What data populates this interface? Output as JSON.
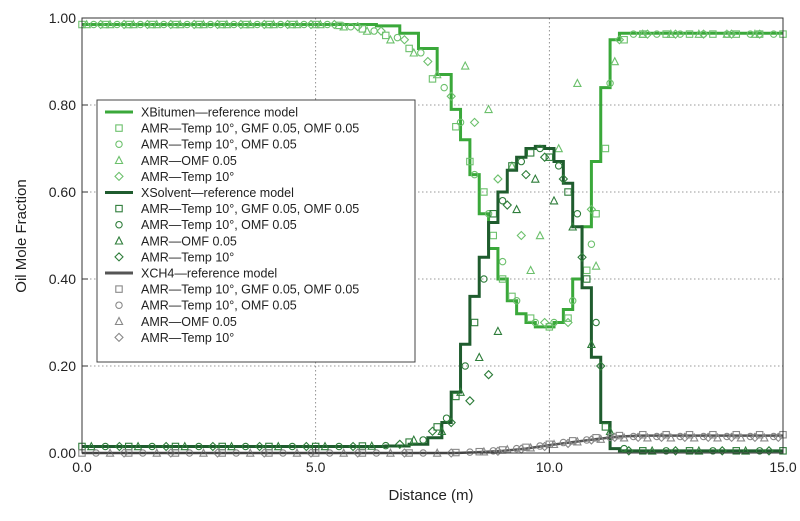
{
  "chart_data": {
    "type": "line",
    "xlabel": "Distance (m)",
    "ylabel": "Oil Mole Fraction",
    "xlim": [
      0,
      15
    ],
    "ylim": [
      0,
      1
    ],
    "x_ticks": [
      "0.0",
      "5.0",
      "10.0",
      "15.0"
    ],
    "y_ticks": [
      "0.00",
      "0.20",
      "0.40",
      "0.60",
      "0.80",
      "1.00"
    ],
    "grid": "dotted at major ticks",
    "legend_position": "center-left",
    "colors": {
      "bitumen": "#3aa83a",
      "bitumen_markers": "#6cc06c",
      "solvent": "#1f5c2e",
      "solvent_markers": "#2e7d3a",
      "ch4": "#555555",
      "ch4_markers": "#888888"
    },
    "series": [
      {
        "name": "XBitumen—reference model",
        "style": "step-line",
        "x": [
          0.0,
          2.0,
          4.0,
          5.5,
          6.3,
          6.8,
          7.2,
          7.6,
          7.9,
          8.1,
          8.3,
          8.5,
          8.7,
          8.9,
          9.1,
          9.3,
          9.5,
          9.7,
          9.9,
          10.1,
          10.3,
          10.5,
          10.7,
          10.9,
          11.1,
          11.3,
          11.5,
          12.0,
          13.0,
          14.0,
          15.0
        ],
        "y": [
          0.985,
          0.985,
          0.985,
          0.985,
          0.982,
          0.965,
          0.93,
          0.87,
          0.79,
          0.72,
          0.64,
          0.55,
          0.47,
          0.4,
          0.35,
          0.32,
          0.3,
          0.29,
          0.29,
          0.3,
          0.33,
          0.4,
          0.52,
          0.67,
          0.84,
          0.95,
          0.965,
          0.965,
          0.965,
          0.965,
          0.965
        ]
      },
      {
        "name": "AMR—Temp 10°, GMF 0.05, OMF 0.05",
        "marker": "square",
        "family": "bitumen",
        "x": [
          0.0,
          0.5,
          1.0,
          1.5,
          2.0,
          2.5,
          3.0,
          3.5,
          4.0,
          4.5,
          5.0,
          5.5,
          6.0,
          6.5,
          7.0,
          7.5,
          8.0,
          8.3,
          8.6,
          8.8,
          9.0,
          9.2,
          9.6,
          10.0,
          10.4,
          10.8,
          11.0,
          11.2,
          11.6,
          12.0,
          12.5,
          13.0,
          13.5,
          14.0,
          14.5,
          15.0
        ],
        "y": [
          0.985,
          0.985,
          0.985,
          0.985,
          0.985,
          0.985,
          0.985,
          0.985,
          0.985,
          0.985,
          0.985,
          0.983,
          0.975,
          0.96,
          0.93,
          0.86,
          0.75,
          0.67,
          0.6,
          0.5,
          0.4,
          0.36,
          0.31,
          0.29,
          0.31,
          0.42,
          0.55,
          0.7,
          0.95,
          0.963,
          0.963,
          0.963,
          0.963,
          0.963,
          0.963,
          0.963
        ]
      },
      {
        "name": "AMR—Temp 10°, OMF 0.05",
        "marker": "circle",
        "family": "bitumen",
        "x": [
          0.25,
          0.75,
          1.25,
          1.75,
          2.25,
          2.75,
          3.25,
          3.75,
          4.25,
          4.75,
          5.25,
          5.75,
          6.25,
          6.75,
          7.25,
          7.75,
          8.1,
          8.4,
          8.7,
          9.0,
          9.3,
          9.7,
          10.1,
          10.5,
          10.9,
          11.3,
          11.8,
          12.3,
          12.8,
          13.3,
          13.8,
          14.3,
          14.8
        ],
        "y": [
          0.985,
          0.985,
          0.985,
          0.985,
          0.985,
          0.985,
          0.985,
          0.985,
          0.985,
          0.985,
          0.985,
          0.98,
          0.97,
          0.955,
          0.92,
          0.84,
          0.76,
          0.64,
          0.55,
          0.44,
          0.35,
          0.3,
          0.3,
          0.35,
          0.48,
          0.85,
          0.963,
          0.963,
          0.963,
          0.963,
          0.963,
          0.963,
          0.963
        ]
      },
      {
        "name": "AMR—OMF 0.05",
        "marker": "triangle",
        "family": "bitumen",
        "x": [
          0.1,
          0.6,
          1.1,
          1.6,
          2.1,
          2.6,
          3.1,
          3.6,
          4.1,
          4.6,
          5.1,
          5.6,
          6.1,
          6.6,
          7.1,
          7.6,
          8.2,
          8.7,
          9.2,
          9.6,
          9.8,
          10.2,
          10.6,
          11.0,
          11.4,
          12.0,
          12.6,
          13.2,
          13.8,
          14.4
        ],
        "y": [
          0.985,
          0.985,
          0.985,
          0.985,
          0.985,
          0.985,
          0.985,
          0.985,
          0.985,
          0.985,
          0.985,
          0.98,
          0.97,
          0.95,
          0.92,
          0.87,
          0.89,
          0.79,
          0.66,
          0.42,
          0.5,
          0.7,
          0.85,
          0.43,
          0.9,
          0.963,
          0.963,
          0.963,
          0.963,
          0.963
        ]
      },
      {
        "name": "AMR—Temp 10°",
        "marker": "diamond",
        "family": "bitumen",
        "x": [
          0.4,
          0.9,
          1.4,
          1.9,
          2.4,
          2.9,
          3.4,
          3.9,
          4.4,
          4.9,
          5.4,
          5.9,
          6.4,
          6.9,
          7.4,
          7.9,
          8.4,
          8.9,
          9.4,
          9.9,
          10.4,
          10.9,
          11.5,
          12.1,
          12.7,
          13.3,
          13.9,
          14.5
        ],
        "y": [
          0.985,
          0.985,
          0.985,
          0.985,
          0.985,
          0.985,
          0.985,
          0.985,
          0.985,
          0.985,
          0.985,
          0.98,
          0.97,
          0.95,
          0.9,
          0.82,
          0.76,
          0.63,
          0.5,
          0.3,
          0.3,
          0.56,
          0.95,
          0.963,
          0.963,
          0.963,
          0.963,
          0.963
        ]
      },
      {
        "name": "XSolvent—reference model",
        "style": "step-line",
        "x": [
          0.0,
          2.0,
          4.0,
          5.5,
          6.5,
          7.0,
          7.4,
          7.7,
          7.9,
          8.1,
          8.3,
          8.5,
          8.7,
          8.9,
          9.1,
          9.3,
          9.5,
          9.7,
          9.9,
          10.1,
          10.3,
          10.5,
          10.7,
          10.9,
          11.1,
          11.3,
          11.5,
          12.0,
          13.0,
          14.0,
          15.0
        ],
        "y": [
          0.015,
          0.015,
          0.015,
          0.015,
          0.016,
          0.02,
          0.035,
          0.07,
          0.14,
          0.25,
          0.36,
          0.45,
          0.53,
          0.6,
          0.65,
          0.68,
          0.7,
          0.705,
          0.7,
          0.67,
          0.62,
          0.52,
          0.38,
          0.22,
          0.07,
          0.01,
          0.005,
          0.005,
          0.005,
          0.005,
          0.005
        ]
      },
      {
        "name": "AMR—Temp 10°, GMF 0.05, OMF 0.05",
        "marker": "square",
        "family": "solvent",
        "x": [
          0.0,
          1.0,
          2.0,
          3.0,
          4.0,
          5.0,
          6.0,
          7.0,
          7.6,
          8.0,
          8.4,
          8.8,
          9.2,
          9.6,
          10.0,
          10.4,
          10.8,
          11.2,
          12.0,
          13.0,
          14.0,
          15.0
        ],
        "y": [
          0.015,
          0.015,
          0.015,
          0.015,
          0.015,
          0.015,
          0.016,
          0.025,
          0.06,
          0.13,
          0.3,
          0.55,
          0.66,
          0.69,
          0.68,
          0.6,
          0.4,
          0.06,
          0.005,
          0.005,
          0.005,
          0.005
        ]
      },
      {
        "name": "AMR—Temp 10°, OMF 0.05",
        "marker": "circle",
        "family": "solvent",
        "x": [
          0.5,
          1.5,
          2.5,
          3.5,
          4.5,
          5.5,
          6.5,
          7.3,
          7.8,
          8.2,
          8.6,
          9.0,
          9.4,
          9.8,
          10.2,
          10.6,
          11.0,
          11.6,
          12.5,
          13.5,
          14.5
        ],
        "y": [
          0.015,
          0.015,
          0.015,
          0.015,
          0.015,
          0.015,
          0.017,
          0.03,
          0.08,
          0.2,
          0.4,
          0.58,
          0.67,
          0.7,
          0.66,
          0.55,
          0.3,
          0.01,
          0.005,
          0.005,
          0.005
        ]
      },
      {
        "name": "AMR—OMF 0.05",
        "marker": "triangle",
        "family": "solvent",
        "x": [
          0.2,
          1.2,
          2.2,
          3.2,
          4.2,
          5.2,
          6.2,
          7.1,
          7.7,
          8.1,
          8.5,
          8.9,
          9.3,
          9.7,
          10.1,
          10.5,
          10.9,
          11.3,
          12.2,
          13.2,
          14.2
        ],
        "y": [
          0.015,
          0.015,
          0.015,
          0.015,
          0.015,
          0.015,
          0.016,
          0.03,
          0.05,
          0.14,
          0.22,
          0.28,
          0.56,
          0.63,
          0.58,
          0.52,
          0.25,
          0.05,
          0.005,
          0.005,
          0.005
        ]
      },
      {
        "name": "AMR—Temp 10°",
        "marker": "diamond",
        "family": "solvent",
        "x": [
          0.8,
          1.8,
          2.8,
          3.8,
          4.8,
          5.8,
          6.8,
          7.5,
          7.9,
          8.3,
          8.7,
          9.1,
          9.5,
          9.9,
          10.3,
          10.7,
          11.1,
          11.7,
          12.7,
          13.7,
          14.7
        ],
        "y": [
          0.015,
          0.015,
          0.015,
          0.015,
          0.015,
          0.015,
          0.02,
          0.05,
          0.07,
          0.12,
          0.18,
          0.57,
          0.64,
          0.68,
          0.63,
          0.45,
          0.2,
          0.005,
          0.005,
          0.005,
          0.005
        ]
      },
      {
        "name": "XCH4—reference model",
        "style": "line",
        "x": [
          0.0,
          5.0,
          8.0,
          8.5,
          9.0,
          9.5,
          10.0,
          10.5,
          11.0,
          11.5,
          12.0,
          13.0,
          14.0,
          15.0
        ],
        "y": [
          0.0,
          0.0,
          0.0,
          0.002,
          0.005,
          0.01,
          0.018,
          0.025,
          0.032,
          0.038,
          0.04,
          0.04,
          0.04,
          0.04
        ]
      },
      {
        "name": "AMR—Temp 10°, GMF 0.05, OMF 0.05",
        "marker": "square",
        "family": "ch4",
        "x": [
          0.0,
          1.0,
          2.0,
          3.0,
          4.0,
          5.0,
          6.0,
          7.0,
          8.0,
          8.5,
          9.0,
          9.5,
          10.0,
          10.5,
          11.0,
          11.5,
          12.0,
          12.5,
          13.0,
          13.5,
          14.0,
          14.5,
          15.0
        ],
        "y": [
          0.0,
          0.0,
          0.0,
          0.0,
          0.0,
          0.0,
          0.0,
          0.0,
          0.001,
          0.003,
          0.007,
          0.013,
          0.02,
          0.028,
          0.035,
          0.04,
          0.042,
          0.042,
          0.042,
          0.042,
          0.042,
          0.042,
          0.042
        ]
      },
      {
        "name": "AMR—Temp 10°, OMF 0.05",
        "marker": "circle",
        "family": "ch4",
        "x": [
          0.3,
          1.3,
          2.3,
          3.3,
          4.3,
          5.3,
          6.3,
          7.3,
          8.3,
          8.8,
          9.3,
          9.8,
          10.3,
          10.8,
          11.3,
          11.8,
          12.3,
          12.8,
          13.3,
          13.8,
          14.3,
          14.8
        ],
        "y": [
          0.0,
          0.0,
          0.0,
          0.0,
          0.0,
          0.0,
          0.0,
          0.0,
          0.002,
          0.005,
          0.01,
          0.016,
          0.024,
          0.03,
          0.036,
          0.038,
          0.038,
          0.038,
          0.038,
          0.038,
          0.038,
          0.038
        ]
      },
      {
        "name": "AMR—OMF 0.05",
        "marker": "triangle",
        "family": "ch4",
        "x": [
          0.6,
          1.6,
          2.6,
          3.6,
          4.6,
          5.6,
          6.6,
          7.6,
          8.6,
          9.1,
          9.6,
          10.1,
          10.6,
          11.1,
          11.6,
          12.1,
          12.6,
          13.1,
          13.6,
          14.1,
          14.6
        ],
        "y": [
          0.0,
          0.0,
          0.0,
          0.0,
          0.0,
          0.0,
          0.0,
          0.0,
          0.003,
          0.008,
          0.012,
          0.02,
          0.026,
          0.032,
          0.035,
          0.035,
          0.035,
          0.035,
          0.035,
          0.035,
          0.035
        ]
      },
      {
        "name": "AMR—Temp 10°",
        "marker": "diamond",
        "family": "ch4",
        "x": [
          0.9,
          1.9,
          2.9,
          3.9,
          4.9,
          5.9,
          6.9,
          7.9,
          8.9,
          9.4,
          9.9,
          10.4,
          10.9,
          11.4,
          11.9,
          12.4,
          12.9,
          13.4,
          13.9,
          14.4,
          14.9
        ],
        "y": [
          0.0,
          0.0,
          0.0,
          0.0,
          0.0,
          0.0,
          0.0,
          0.0,
          0.004,
          0.009,
          0.015,
          0.022,
          0.03,
          0.036,
          0.036,
          0.036,
          0.036,
          0.036,
          0.036,
          0.036,
          0.036
        ]
      }
    ]
  }
}
